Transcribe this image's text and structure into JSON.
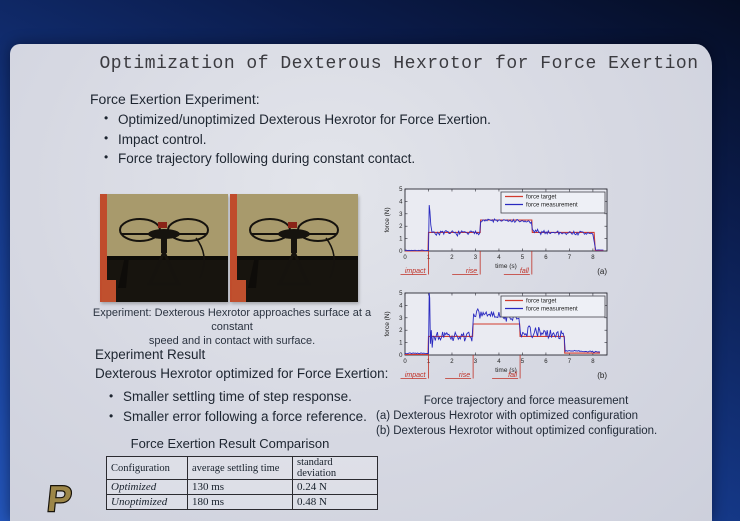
{
  "slide": {
    "title": "Optimization of Dexterous Hexrotor for Force Exertion",
    "experiment": {
      "heading": "Force Exertion Experiment:",
      "bullets": [
        "Optimized/unoptimized Dexterous Hexrotor for Force Exertion.",
        "Impact control.",
        "Force trajectory following during constant contact."
      ]
    },
    "photo_caption": {
      "line1": "Experiment: Dexterous Hexrotor approaches surface at a constant",
      "line2": "speed and in contact with surface."
    },
    "result": {
      "heading": "Experiment Result",
      "subheading": "Dexterous Hexrotor optimized for Force Exertion:",
      "bullets": [
        "Smaller settling time of step response.",
        "Smaller error following a force reference."
      ]
    },
    "table": {
      "title": "Force Exertion Result Comparison",
      "headers": [
        "Configuration",
        "average settling time",
        "standard deviation"
      ],
      "rows": [
        [
          "Optimized",
          "130 ms",
          "0.24 N"
        ],
        [
          "Unoptimized",
          "180 ms",
          "0.48 N"
        ]
      ]
    },
    "figure_caption": {
      "line1": "Force trajectory and force measurement",
      "line2": "(a) Dexterous Hexrotor with optimized configuration",
      "line3": "(b) Dexterous Hexrotor without optimized configuration."
    },
    "logo": {
      "letter": "P",
      "brand_gold": "#9c8648",
      "brand_outline": "#17130a"
    },
    "photo_colors": {
      "wall": "#a89a6c",
      "floor": "#17140e",
      "orange_strip": "#c04c2c"
    }
  },
  "chart_data": [
    {
      "type": "line",
      "label": "(a)",
      "xlabel": "time (s)",
      "ylabel": "force (N)",
      "xlim": [
        0,
        8.6
      ],
      "ylim": [
        0,
        5
      ],
      "xticks": [
        0,
        1,
        2,
        3,
        4,
        5,
        6,
        7,
        8
      ],
      "yticks": [
        0,
        1,
        2,
        3,
        4,
        5
      ],
      "legend": [
        "force target",
        "force measurement"
      ],
      "legend_position": "upper right",
      "grid": false,
      "colors": {
        "target": "#d23b2f",
        "measurement": "#2a2ac0",
        "annotation": "#c03026"
      },
      "annotations": [
        {
          "label": "impact",
          "x": 1.0
        },
        {
          "label": "rise",
          "x": 3.2
        },
        {
          "label": "fall",
          "x": 5.4
        }
      ],
      "series": [
        {
          "name": "force target",
          "points": [
            [
              0,
              0
            ],
            [
              0.98,
              0
            ],
            [
              1,
              1.5
            ],
            [
              3.2,
              1.5
            ],
            [
              3.22,
              2.5
            ],
            [
              5.4,
              2.5
            ],
            [
              5.42,
              1.5
            ],
            [
              8.05,
              1.5
            ],
            [
              8.1,
              0.05
            ],
            [
              8.45,
              0.05
            ]
          ]
        },
        {
          "name": "force measurement",
          "seed": 7,
          "spike_points": [
            [
              1.0,
              0.05
            ],
            [
              1.03,
              3.7
            ],
            [
              1.06,
              3.2
            ],
            [
              1.1,
              2.1
            ],
            [
              1.15,
              1.5
            ]
          ],
          "noise_segments": [
            {
              "x0": 0.0,
              "x1": 0.98,
              "base": 0.05,
              "noise": 0.03
            },
            {
              "x0": 1.2,
              "x1": 3.18,
              "base": 1.45,
              "noise": 0.24
            },
            {
              "x0": 3.22,
              "x1": 5.38,
              "base": 2.5,
              "base_end": 2.35,
              "noise": 0.18
            },
            {
              "x0": 5.42,
              "x1": 8.0,
              "base": 1.55,
              "base_end": 1.4,
              "noise": 0.24
            },
            {
              "x0": 8.12,
              "x1": 8.45,
              "base": 0.07,
              "noise": 0.03
            }
          ]
        }
      ]
    },
    {
      "type": "line",
      "label": "(b)",
      "xlabel": "time (s)",
      "ylabel": "force (N)",
      "xlim": [
        0,
        8.6
      ],
      "ylim": [
        0,
        5
      ],
      "xticks": [
        0,
        1,
        2,
        3,
        4,
        5,
        6,
        7,
        8
      ],
      "yticks": [
        0,
        1,
        2,
        3,
        4,
        5
      ],
      "legend": [
        "force target",
        "force measurement"
      ],
      "legend_position": "upper right",
      "grid": false,
      "colors": {
        "target": "#d23b2f",
        "measurement": "#2a2ac0",
        "annotation": "#c03026"
      },
      "annotations": [
        {
          "label": "impact",
          "x": 1.0
        },
        {
          "label": "rise",
          "x": 2.9
        },
        {
          "label": "fall",
          "x": 4.9
        }
      ],
      "series": [
        {
          "name": "force target",
          "points": [
            [
              0,
              0.05
            ],
            [
              0.98,
              0.05
            ],
            [
              1,
              1.5
            ],
            [
              2.88,
              1.5
            ],
            [
              2.9,
              2.5
            ],
            [
              4.88,
              2.5
            ],
            [
              4.9,
              1.5
            ],
            [
              6.78,
              1.5
            ],
            [
              6.8,
              0.15
            ],
            [
              8.3,
              0.15
            ]
          ]
        },
        {
          "name": "force measurement",
          "seed": 13,
          "spike_points": [
            [
              1.0,
              0.15
            ],
            [
              1.03,
              5.0
            ],
            [
              1.05,
              4.6
            ],
            [
              1.08,
              0.9
            ],
            [
              1.12,
              2.0
            ],
            [
              1.16,
              0.6
            ]
          ],
          "noise_segments": [
            {
              "x0": 0.0,
              "x1": 0.98,
              "base": 0.15,
              "noise": 0.05
            },
            {
              "x0": 1.2,
              "x1": 2.85,
              "base": 1.5,
              "noise": 0.45
            },
            {
              "x0": 2.92,
              "x1": 4.85,
              "base": 3.35,
              "base_end": 2.95,
              "noise": 0.45
            },
            {
              "x0": 4.92,
              "x1": 6.78,
              "base": 1.9,
              "base_end": 1.6,
              "noise": 0.55
            },
            {
              "x0": 6.82,
              "x1": 8.3,
              "base": 0.35,
              "base_end": 0.25,
              "noise": 0.07
            }
          ]
        }
      ]
    }
  ]
}
